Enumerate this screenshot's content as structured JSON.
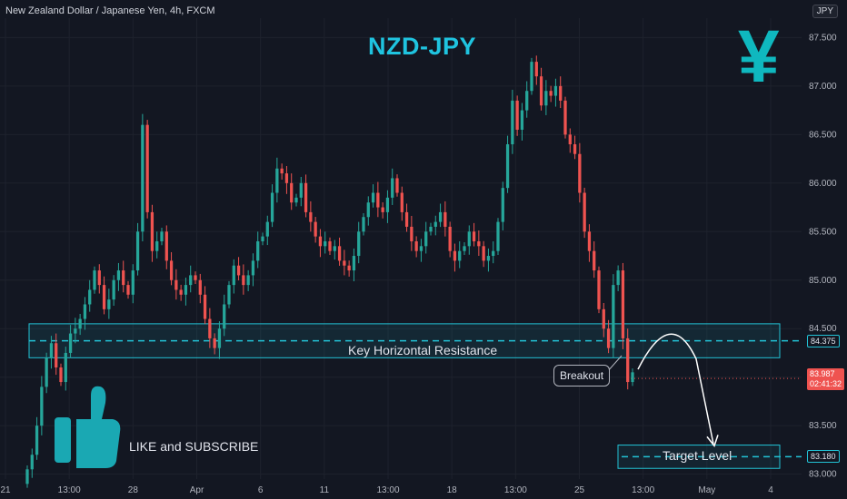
{
  "header": {
    "symbol_line": "New Zealand Dollar / Japanese Yen, 4h, FXCM",
    "currency_button": "JPY"
  },
  "title": "NZD-JPY",
  "yen_symbol": "¥",
  "annotations": {
    "resistance_label": "Key Horizontal Resistance",
    "breakout_label": "Breakout",
    "target_label": "Target Level",
    "like_label": "LIKE and SUBSCRIBE"
  },
  "price_tags": {
    "resistance": "84.375",
    "current_price": "83.987",
    "countdown": "02:41:32",
    "target": "83.180"
  },
  "colors": {
    "background": "#131722",
    "up": "#26a69a",
    "down": "#ef5350",
    "accent": "#1fc4e0",
    "box": "#22c3d6",
    "thumb": "#1aa8b3"
  },
  "chart_data": {
    "type": "candlestick",
    "title": "NZD-JPY",
    "ylim": [
      82.95,
      87.7
    ],
    "yticks": [
      "87.500",
      "87.000",
      "86.500",
      "86.000",
      "85.500",
      "85.000",
      "84.500",
      "84.000",
      "83.500",
      "83.000"
    ],
    "xticks": [
      "21",
      "13:00",
      "28",
      "Apr",
      "6",
      "11",
      "13:00",
      "18",
      "13:00",
      "25",
      "13:00",
      "May",
      "4"
    ],
    "levels": {
      "resistance_zone": [
        84.2,
        84.55
      ],
      "resistance_line": 84.375,
      "target_zone": [
        83.06,
        83.3
      ],
      "target_line": 83.18,
      "current_price": 83.987
    },
    "closes": [
      83.05,
      83.2,
      83.5,
      83.9,
      84.2,
      84.35,
      84.1,
      83.95,
      84.25,
      84.45,
      84.5,
      84.6,
      84.75,
      84.9,
      85.1,
      84.95,
      84.7,
      84.8,
      85.0,
      85.1,
      84.95,
      84.85,
      85.1,
      85.5,
      86.6,
      85.7,
      85.3,
      85.4,
      85.5,
      85.2,
      85.0,
      84.9,
      84.85,
      84.95,
      85.05,
      85.0,
      84.85,
      84.6,
      84.4,
      84.3,
      84.5,
      84.75,
      84.95,
      85.15,
      85.05,
      84.95,
      85.05,
      85.2,
      85.4,
      85.45,
      85.6,
      85.9,
      86.15,
      86.1,
      86.0,
      85.8,
      85.85,
      86.0,
      85.7,
      85.6,
      85.45,
      85.35,
      85.4,
      85.3,
      85.35,
      85.2,
      85.15,
      85.1,
      85.25,
      85.5,
      85.65,
      85.8,
      85.9,
      85.75,
      85.7,
      85.85,
      86.05,
      85.9,
      85.7,
      85.55,
      85.4,
      85.3,
      85.35,
      85.5,
      85.55,
      85.6,
      85.7,
      85.55,
      85.3,
      85.2,
      85.3,
      85.35,
      85.5,
      85.4,
      85.35,
      85.2,
      85.25,
      85.3,
      85.6,
      85.95,
      86.4,
      86.85,
      86.55,
      86.75,
      86.95,
      87.25,
      87.1,
      86.8,
      86.95,
      86.9,
      87.0,
      86.85,
      86.5,
      86.4,
      86.3,
      85.9,
      85.5,
      85.3,
      85.1,
      84.7,
      84.5,
      84.3,
      84.95,
      85.1,
      84.4,
      83.95,
      84.05
    ]
  }
}
